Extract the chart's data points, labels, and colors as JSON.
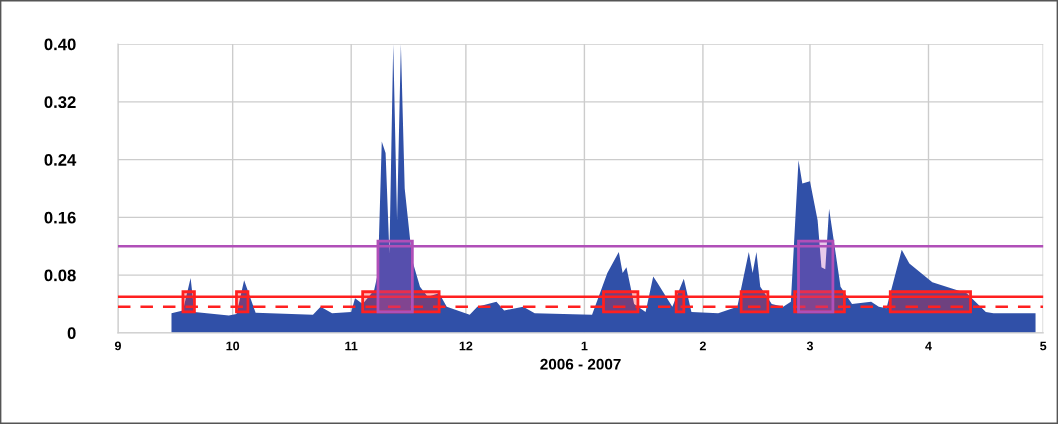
{
  "chart_data": {
    "type": "area",
    "xlabel": "2006 - 2007",
    "x": [
      "2006-09-15",
      "2006-09-18",
      "2006-09-20",
      "2006-09-21",
      "2006-09-30",
      "2006-10-02",
      "2006-10-04",
      "2006-10-07",
      "2006-10-22",
      "2006-10-24",
      "2006-10-27",
      "2006-11-01",
      "2006-11-02",
      "2006-11-04",
      "2006-11-07",
      "2006-11-08",
      "2006-11-09",
      "2006-11-10",
      "2006-11-11",
      "2006-11-12",
      "2006-11-13",
      "2006-11-14",
      "2006-11-15",
      "2006-11-17",
      "2006-11-19",
      "2006-11-21",
      "2006-11-24",
      "2006-11-26",
      "2006-12-02",
      "2006-12-04",
      "2006-12-09",
      "2006-12-11",
      "2006-12-16",
      "2006-12-19",
      "2007-01-03",
      "2007-01-07",
      "2007-01-10",
      "2007-01-11",
      "2007-01-12",
      "2007-01-14",
      "2007-01-17",
      "2007-01-19",
      "2007-01-20",
      "2007-01-24",
      "2007-01-27",
      "2007-01-29",
      "2007-02-05",
      "2007-02-10",
      "2007-02-13",
      "2007-02-14",
      "2007-02-15",
      "2007-02-16",
      "2007-02-19",
      "2007-02-22",
      "2007-02-24",
      "2007-02-26",
      "2007-02-27",
      "2007-03-01",
      "2007-03-03",
      "2007-03-04",
      "2007-03-05",
      "2007-03-06",
      "2007-03-08",
      "2007-03-09",
      "2007-03-12",
      "2007-03-17",
      "2007-03-19",
      "2007-03-21",
      "2007-03-25",
      "2007-03-27",
      "2007-04-02",
      "2007-04-11",
      "2007-04-16",
      "2007-04-18",
      "2007-04-29"
    ],
    "series": [
      {
        "color": "#3050a8",
        "values": [
          0.027,
          0.031,
          0.076,
          0.029,
          0.024,
          0.026,
          0.073,
          0.028,
          0.025,
          0.036,
          0.027,
          0.029,
          0.048,
          0.04,
          0.059,
          0.083,
          0.265,
          0.249,
          0.11,
          0.4,
          0.156,
          0.4,
          0.2,
          0.1,
          0.064,
          0.05,
          0.055,
          0.036,
          0.025,
          0.036,
          0.043,
          0.031,
          0.036,
          0.027,
          0.025,
          0.083,
          0.112,
          0.083,
          0.091,
          0.04,
          0.029,
          0.078,
          0.07,
          0.036,
          0.075,
          0.029,
          0.027,
          0.036,
          0.112,
          0.083,
          0.112,
          0.064,
          0.04,
          0.036,
          0.043,
          0.239,
          0.207,
          0.21,
          0.156,
          0.091,
          0.088,
          0.172,
          0.1,
          0.064,
          0.04,
          0.043,
          0.036,
          0.034,
          0.115,
          0.096,
          0.07,
          0.055,
          0.029,
          0.027,
          0.027
        ]
      }
    ],
    "xlim": [
      "2006-09-01",
      "2007-05-01"
    ],
    "xticks": [
      {
        "value": "2006-09-01",
        "label": "9"
      },
      {
        "value": "2006-10-01",
        "label": "10"
      },
      {
        "value": "2006-11-01",
        "label": "11"
      },
      {
        "value": "2006-12-01",
        "label": "12"
      },
      {
        "value": "2007-01-01",
        "label": "1"
      },
      {
        "value": "2007-02-01",
        "label": "2"
      },
      {
        "value": "2007-03-01",
        "label": "3"
      },
      {
        "value": "2007-04-01",
        "label": "4"
      },
      {
        "value": "2007-05-01",
        "label": "5"
      }
    ],
    "ylim": [
      0,
      0.4
    ],
    "yticks": [
      0,
      0.08,
      0.16,
      0.24,
      0.32,
      {
        "value": 0.4,
        "label": "0.40"
      }
    ],
    "grid": true,
    "ref_lines": [
      {
        "axis": "y",
        "value": 0.12,
        "color": "#b04fb8"
      },
      {
        "axis": "y",
        "value": 0.05,
        "color": "#ff2020"
      },
      {
        "axis": "y",
        "value": 0.036,
        "color": "#ff2020",
        "line_style": "dashed"
      }
    ],
    "bands": [
      {
        "axis": "x",
        "from": "2006-09-18",
        "to": "2006-09-21",
        "color": "#ff2020"
      },
      {
        "axis": "x",
        "from": "2006-10-02",
        "to": "2006-10-05",
        "color": "#ff2020"
      },
      {
        "axis": "x",
        "from": "2006-11-04",
        "to": "2006-11-24",
        "color": "#ff2020"
      },
      {
        "axis": "x",
        "from": "2007-01-06",
        "to": "2007-01-15",
        "color": "#ff2020"
      },
      {
        "axis": "x",
        "from": "2007-01-25",
        "to": "2007-01-27",
        "color": "#ff2020"
      },
      {
        "axis": "x",
        "from": "2007-02-11",
        "to": "2007-02-18",
        "color": "#ff2020"
      },
      {
        "axis": "x",
        "from": "2007-02-25",
        "to": "2007-03-10",
        "color": "#ff2020"
      },
      {
        "axis": "x",
        "from": "2007-03-22",
        "to": "2007-04-12",
        "color": "#ff2020"
      },
      {
        "axis": "x",
        "from": "2006-11-08",
        "to": "2006-11-17",
        "color": "#b04fb8"
      },
      {
        "axis": "x",
        "from": "2007-02-26",
        "to": "2007-03-07",
        "color": "#b04fb8"
      }
    ]
  }
}
